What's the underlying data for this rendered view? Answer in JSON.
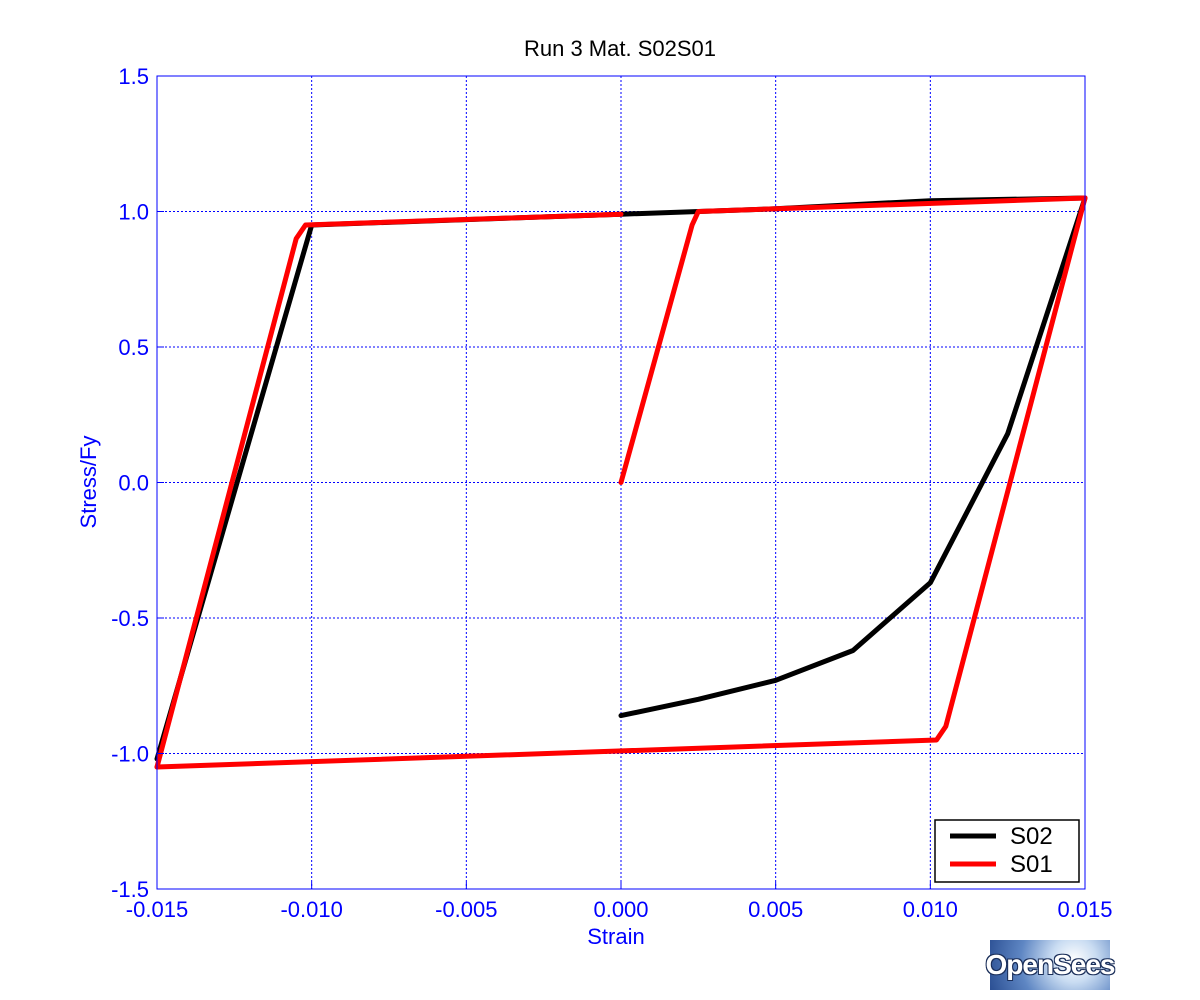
{
  "chart_data": {
    "type": "line",
    "title": "Run 3   Mat. S02S01",
    "xlabel": "Strain",
    "ylabel": "Stress/Fy",
    "xlim": [
      -0.015,
      0.015
    ],
    "ylim": [
      -1.5,
      1.5
    ],
    "xticks": [
      -0.015,
      -0.01,
      -0.005,
      0.0,
      0.005,
      0.01,
      0.015
    ],
    "xtick_labels": [
      "-0.015",
      "-0.010",
      "-0.005",
      "0.000",
      "0.005",
      "0.010",
      "0.015"
    ],
    "yticks": [
      -1.5,
      -1.0,
      -0.5,
      0.0,
      0.5,
      1.0,
      1.5
    ],
    "ytick_labels": [
      "-1.5",
      "-1.0",
      "-0.5",
      "0.0",
      "0.5",
      "1.0",
      "1.5"
    ],
    "grid": true,
    "legend_position": "bottom-right",
    "series": [
      {
        "name": "S02",
        "color": "#000000",
        "segments": [
          {
            "x": [
              0.0,
              0.0025,
              0.005,
              0.0075,
              0.01,
              0.0125,
              0.015
            ],
            "y": [
              -0.86,
              -0.8,
              -0.73,
              -0.62,
              -0.37,
              0.18,
              1.05
            ]
          },
          {
            "x": [
              0.015,
              0.01,
              0.005,
              0.0,
              -0.005,
              -0.01,
              -0.015
            ],
            "y": [
              1.05,
              1.04,
              1.01,
              0.99,
              0.97,
              0.95,
              -1.02
            ]
          }
        ]
      },
      {
        "name": "S01",
        "color": "#ff0000",
        "segments": [
          {
            "x": [
              0.0,
              0.0023,
              0.0025,
              0.015
            ],
            "y": [
              0.0,
              0.95,
              1.0,
              1.05
            ]
          },
          {
            "x": [
              0.015,
              0.0105,
              0.0102,
              -0.015
            ],
            "y": [
              1.05,
              -0.9,
              -0.95,
              -1.05
            ]
          },
          {
            "x": [
              -0.015,
              -0.0105,
              -0.0102,
              0.0
            ],
            "y": [
              -1.05,
              0.9,
              0.95,
              0.99
            ]
          }
        ]
      }
    ]
  },
  "logo": {
    "text": "OpenSees"
  }
}
